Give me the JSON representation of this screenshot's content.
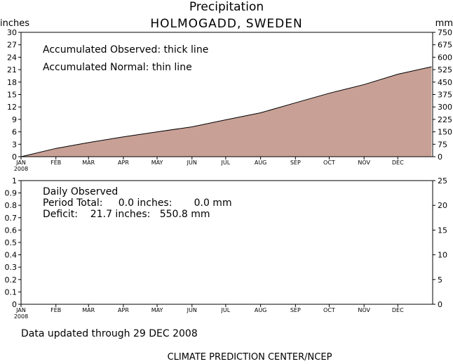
{
  "title": "Precipitation",
  "subtitle": "HOLMOGADD, SWEDEN",
  "footer_updated": "Data updated through 29 DEC 2008",
  "footer_credit": "CLIMATE PREDICTION CENTER/NCEP",
  "colors": {
    "fill": "#c8a096",
    "line": "#000000"
  },
  "chart_data": [
    {
      "type": "area",
      "ylabel_left": "inches",
      "ylabel_right": "mm",
      "annotations": [
        "Accumulated Observed: thick line",
        "Accumulated Normal: thin line"
      ],
      "y_ticks_left": [
        0,
        3,
        6,
        9,
        12,
        15,
        18,
        21,
        24,
        27,
        30
      ],
      "y_ticks_right": [
        0,
        75,
        150,
        225,
        300,
        375,
        450,
        525,
        600,
        675,
        750
      ],
      "x_ticks": [
        "JAN",
        "FEB",
        "MAR",
        "APR",
        "MAY",
        "JUN",
        "JUL",
        "AUG",
        "SEP",
        "OCT",
        "NOV",
        "DEC"
      ],
      "x_year_label": "2008",
      "ylim": [
        0,
        30
      ],
      "series": [
        {
          "name": "Accumulated Normal",
          "x": [
            "2008-01-01",
            "2008-02-01",
            "2008-03-01",
            "2008-04-01",
            "2008-05-01",
            "2008-06-01",
            "2008-07-01",
            "2008-08-01",
            "2008-09-01",
            "2008-10-01",
            "2008-11-01",
            "2008-12-01",
            "2008-12-31"
          ],
          "values": [
            0,
            2.0,
            3.4,
            4.8,
            6.0,
            7.2,
            8.9,
            10.6,
            13.0,
            15.3,
            17.4,
            19.9,
            21.7
          ]
        }
      ]
    },
    {
      "type": "bar",
      "annotations": [
        "Daily Observed",
        "Period Total:     0.0 inches:       0.0 mm",
        "Deficit:    21.7 inches:   550.8 mm"
      ],
      "y_ticks_left": [
        0,
        0.1,
        0.2,
        0.3,
        0.4,
        0.5,
        0.6,
        0.7,
        0.8,
        0.9,
        1
      ],
      "y_ticks_right": [
        0,
        5,
        10,
        15,
        20,
        25
      ],
      "x_ticks": [
        "JAN",
        "FEB",
        "MAR",
        "APR",
        "MAY",
        "JUN",
        "JUL",
        "AUG",
        "SEP",
        "OCT",
        "NOV",
        "DEC"
      ],
      "x_year_label": "2008",
      "ylim": [
        0,
        1
      ],
      "ylim_right": [
        0,
        25
      ],
      "values": []
    }
  ]
}
